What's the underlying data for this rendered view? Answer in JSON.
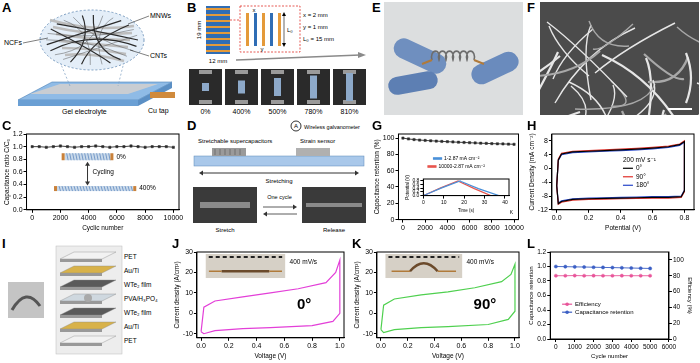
{
  "chart_data": [
    {
      "panel": "C",
      "type": "line",
      "marker": "square",
      "color": "#2b2b2b",
      "xlabel": "Cyclic number",
      "ylabel": "Capacitance ratio C/C₀",
      "x": [
        0,
        500,
        1000,
        1500,
        2000,
        2500,
        3000,
        3500,
        4000,
        4500,
        5000,
        5500,
        6000,
        6500,
        7000,
        7500,
        8000,
        8500,
        9000,
        9500,
        10000
      ],
      "values": [
        1.0,
        1.0,
        0.99,
        1.0,
        1.01,
        1.0,
        0.99,
        1.0,
        1.0,
        1.01,
        1.0,
        0.99,
        1.0,
        1.0,
        1.01,
        1.0,
        0.99,
        1.0,
        1.0,
        1.0,
        0.99
      ],
      "xlim": [
        -400,
        10400
      ],
      "xticks": [
        0,
        2000,
        4000,
        6000,
        8000,
        10000
      ],
      "ylim": [
        0,
        1.2
      ],
      "yticks": [
        {
          "value": 0,
          "label": "0.0"
        },
        0.2,
        0.4,
        0.6,
        0.8,
        {
          "value": 1,
          "label": "1.0"
        },
        1.2
      ],
      "annotations": [
        "0%",
        "400%",
        "Cycling"
      ]
    },
    {
      "panel": "G",
      "type": "line",
      "marker": "square",
      "color": "#2b2b2b",
      "ylabel": "Capacitance retention (%)",
      "x": [
        0,
        500,
        1000,
        1500,
        2000,
        2500,
        3000,
        3500,
        4000,
        4500,
        5000,
        5500,
        6000,
        6500,
        7000,
        7500,
        8000,
        8500,
        9000,
        9500,
        10000
      ],
      "values": [
        100,
        98.9,
        98.2,
        97.6,
        97.1,
        96.7,
        96.3,
        95.9,
        95.6,
        95.2,
        94.9,
        94.6,
        94.3,
        94.0,
        93.7,
        93.5,
        93.2,
        93.0,
        92.8,
        92.6,
        92.4
      ],
      "xlim": [
        -400,
        10400
      ],
      "xticks": [
        0,
        2000,
        4000,
        6000,
        8000,
        10000
      ],
      "ylim": [
        0,
        105
      ],
      "yticks": [
        0,
        20,
        40,
        60,
        80,
        100
      ],
      "inset": {
        "type": "line",
        "xlabel": "Time (s)",
        "ylabel": "Potential (V)",
        "legend": "top",
        "xlim": [
          0,
          42
        ],
        "xticks": [
          0,
          10,
          20,
          30,
          40
        ],
        "ylim": [
          0,
          0.9
        ],
        "yticks": [
          {
            "value": 0,
            "label": "0.0"
          },
          0.2,
          0.4,
          0.6,
          0.8
        ],
        "annotations": [
          "K"
        ],
        "series": [
          {
            "name": "1-2.87 mA cm⁻²",
            "color": "#4a90d9",
            "x": [
              0,
              1,
              9,
              18,
              18.5,
              27,
              37
            ],
            "values": [
              0,
              0.05,
              0.42,
              0.8,
              0.76,
              0.38,
              0
            ]
          },
          {
            "name": "10000-2.87 mA cm⁻²",
            "color": "#e8554e",
            "x": [
              0,
              1,
              8.5,
              17,
              17.5,
              25,
              33
            ],
            "values": [
              0,
              0.05,
              0.42,
              0.8,
              0.76,
              0.38,
              0
            ]
          }
        ]
      }
    },
    {
      "panel": "H",
      "type": "line",
      "xlabel": "Potential (V)",
      "ylabel": "Current Density (mA cm⁻²)",
      "legend": "right",
      "legend_title": "200 mV s⁻¹",
      "x": [
        0,
        0.01,
        0.03,
        0.1,
        0.2,
        0.3,
        0.4,
        0.5,
        0.6,
        0.7,
        0.77,
        0.8,
        0.8,
        0.78,
        0.7,
        0.6,
        0.5,
        0.4,
        0.3,
        0.2,
        0.1,
        0.03,
        0.01,
        0
      ],
      "series": [
        {
          "name": "0°",
          "color": "#000000",
          "values": [
            -5,
            2.5,
            4.2,
            4.8,
            5.0,
            5.2,
            5.4,
            5.6,
            5.9,
            6.3,
            6.9,
            7.8,
            -6.5,
            -8.2,
            -8.4,
            -8.4,
            -8.5,
            -8.6,
            -8.7,
            -8.8,
            -9.0,
            -9.6,
            -10.2,
            -5
          ]
        },
        {
          "name": "90°",
          "color": "#e0302a",
          "values": [
            -5.2,
            2.7,
            4.4,
            5.0,
            5.2,
            5.4,
            5.6,
            5.8,
            6.1,
            6.5,
            7.1,
            8.0,
            -6.7,
            -8.4,
            -8.6,
            -8.6,
            -8.7,
            -8.8,
            -8.9,
            -9.0,
            -9.2,
            -9.8,
            -10.4,
            -5.2
          ]
        },
        {
          "name": "180°",
          "color": "#2746c9",
          "values": [
            -4.8,
            2.3,
            4.0,
            4.6,
            4.8,
            5.0,
            5.2,
            5.4,
            5.7,
            6.1,
            6.7,
            7.6,
            -6.3,
            -8.0,
            -8.2,
            -8.2,
            -8.3,
            -8.4,
            -8.5,
            -8.6,
            -8.8,
            -9.4,
            -10.0,
            -4.8
          ]
        }
      ],
      "xlim": [
        -0.03,
        0.86
      ],
      "xticks": [
        {
          "value": 0,
          "label": "0.0"
        },
        0.2,
        0.4,
        0.6,
        0.8
      ],
      "ylim": [
        -12,
        10
      ],
      "yticks": [
        -12,
        -8,
        -4,
        0,
        4,
        8
      ]
    },
    {
      "panel": "J",
      "type": "line",
      "color": "#e33fd8",
      "xlabel": "Voltage (V)",
      "ylabel": "Current density (A/cm³)",
      "x": [
        0,
        0.02,
        0.1,
        0.3,
        0.5,
        0.7,
        0.9,
        0.97,
        1.0,
        1.0,
        0.95,
        0.8,
        0.5,
        0.3,
        0.1,
        0.02,
        0
      ],
      "values": [
        -9,
        3,
        6,
        8,
        10,
        12,
        15,
        20,
        26,
        0,
        -4,
        -6,
        -7,
        -7.5,
        -8.5,
        -10,
        -9
      ],
      "xlim": [
        -0.03,
        1.03
      ],
      "xticks": [
        {
          "value": 0,
          "label": "0.0"
        },
        0.2,
        0.4,
        0.6,
        0.8,
        {
          "value": 1,
          "label": "1.0"
        }
      ],
      "ylim": [
        -12,
        30
      ],
      "yticks": [
        -10,
        0,
        10,
        20,
        30
      ],
      "annotations": [
        "400 mV/s",
        "0°"
      ]
    },
    {
      "panel": "K",
      "type": "line",
      "color": "#4fd04f",
      "xlabel": "Voltage (V)",
      "ylabel": "Current density (A/cm³)",
      "x": [
        0,
        0.02,
        0.1,
        0.3,
        0.5,
        0.7,
        0.9,
        0.97,
        1.0,
        1.0,
        0.95,
        0.8,
        0.5,
        0.3,
        0.1,
        0.02,
        0
      ],
      "values": [
        -8,
        4,
        7,
        9,
        10.5,
        12.5,
        15.5,
        19,
        24,
        1,
        -3,
        -5.5,
        -6.5,
        -7,
        -8,
        -9.5,
        -8
      ],
      "xlim": [
        -0.03,
        1.03
      ],
      "xticks": [
        {
          "value": 0,
          "label": "0.0"
        },
        0.2,
        0.4,
        0.6,
        0.8,
        {
          "value": 1,
          "label": "1.0"
        }
      ],
      "ylim": [
        -12,
        30
      ],
      "yticks": [
        -10,
        0,
        10,
        20,
        30
      ],
      "annotations": [
        "400 mV/s",
        "90°"
      ]
    },
    {
      "panel": "L",
      "type": "line",
      "marker": "circle",
      "xlabel": "Cycle number",
      "ylabel": "Capacitance retention",
      "y2label": "Efficiency (%)",
      "legend": "bottom",
      "x": [
        0,
        500,
        1000,
        1500,
        2000,
        2500,
        3000,
        3500,
        4000,
        4500,
        5000
      ],
      "series": [
        {
          "name": "Efficiency",
          "color": "#e8559a",
          "axis": "y2",
          "values": [
            80,
            80,
            80.2,
            80,
            80.1,
            80,
            80,
            80.1,
            80,
            80,
            80
          ]
        },
        {
          "name": "Capacitance retention",
          "color": "#3b5fc4",
          "values": [
            1.0,
            0.998,
            0.995,
            0.993,
            0.99,
            0.987,
            0.985,
            0.982,
            0.979,
            0.976,
            0.973
          ]
        }
      ],
      "xlim": [
        -300,
        6000
      ],
      "xticks": [
        0,
        1000,
        2000,
        3000,
        4000,
        5000,
        6000
      ],
      "ylim": [
        0,
        1.2
      ],
      "yticks": [
        {
          "value": 0,
          "label": "0.0"
        },
        0.2,
        0.4,
        0.6,
        0.8,
        {
          "value": 1,
          "label": "1.0"
        },
        1.2
      ],
      "y2lim": [
        0,
        110
      ],
      "y2ticks": [
        0,
        20,
        40,
        60,
        80,
        100
      ]
    }
  ],
  "diagrams": [
    {
      "panel": "A",
      "texts": {
        "mnws": "MNWs",
        "ncfs": "NCFs",
        "cnts": "CNTs",
        "gel": "Gel electrolyte",
        "cu": "Cu tap"
      }
    },
    {
      "panel": "B",
      "texts": {
        "height": "19 mm",
        "width": "12 mm",
        "x_dim": "x = 2 mm",
        "y_dim": "y = 1 mm",
        "l0_dim": "L₀ = 15 mm",
        "l0": "L₀",
        "x": "x",
        "y": "y"
      },
      "strains": [
        "0%",
        "400%",
        "500%",
        "780%",
        "810%"
      ]
    },
    {
      "panel": "D",
      "texts": {
        "sc": "Stretchable supercapacitors",
        "galv": "Wireless galvanometer",
        "meter": "A",
        "sensor": "Strain sensor",
        "stretching": "Stretching",
        "cycle": "One cycle",
        "stretch": "Stretch",
        "release": "Release"
      }
    },
    {
      "panel": "E"
    },
    {
      "panel": "F"
    },
    {
      "panel": "I",
      "layers": [
        "PET",
        "Au/Ti",
        "WTe₂ film",
        "PVA/H₃PO₄",
        "WTe₂ film",
        "Au/Ti",
        "PET"
      ]
    }
  ]
}
